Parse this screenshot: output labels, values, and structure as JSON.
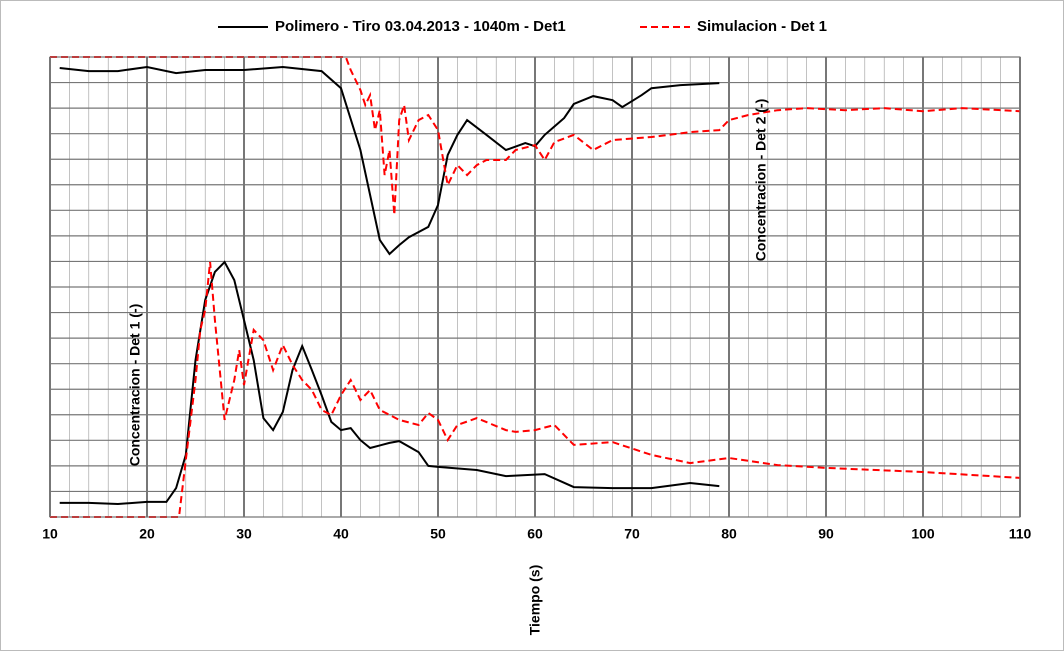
{
  "chart_data": {
    "type": "line",
    "xlabel": "Tiempo (s)",
    "annotations": [
      "Concentracion - Det 1 (-)",
      "Concentracion - Det 2 (-)"
    ],
    "xlim": [
      10,
      110
    ],
    "xticks": [
      10,
      20,
      30,
      40,
      50,
      60,
      70,
      80,
      90,
      100,
      110
    ],
    "x_minor_step": 2,
    "ylim": [
      0,
      18
    ],
    "yticks": [
      0,
      1,
      2,
      3,
      4,
      5,
      6,
      7,
      8,
      9,
      10,
      11,
      12,
      13,
      14,
      15,
      16,
      17,
      18
    ],
    "grid": true,
    "legend": "top",
    "series": [
      {
        "name": "Polimero  - Tiro 03.04.2013 - 1040m - Det1",
        "color": "#000000",
        "dash": "solid",
        "x": [
          11,
          14,
          17,
          20,
          23,
          26,
          30,
          34,
          38,
          40,
          42,
          43,
          44,
          45,
          46,
          47,
          49,
          50,
          51,
          52,
          53,
          55,
          57,
          59,
          60,
          61,
          63,
          64,
          66,
          68,
          69,
          71,
          72,
          75,
          79,
          null,
          11,
          14,
          17,
          20,
          22,
          23,
          24,
          25,
          26,
          27,
          28,
          29,
          30,
          31,
          32,
          33,
          34,
          35,
          36,
          37,
          38,
          39,
          40,
          41,
          42,
          43,
          45,
          46,
          48,
          49,
          50,
          54,
          57,
          61,
          64,
          68,
          72,
          76,
          79
        ],
        "values": [
          17.57,
          17.45,
          17.45,
          17.61,
          17.37,
          17.49,
          17.49,
          17.61,
          17.45,
          16.78,
          14.36,
          12.6,
          10.84,
          10.29,
          10.64,
          10.95,
          11.35,
          12.21,
          14.16,
          14.95,
          15.53,
          14.95,
          14.36,
          14.63,
          14.51,
          14.95,
          15.61,
          16.16,
          16.47,
          16.31,
          16.04,
          16.51,
          16.78,
          16.9,
          16.98,
          null,
          0.55,
          0.55,
          0.51,
          0.59,
          0.59,
          1.13,
          2.43,
          6.14,
          8.49,
          9.59,
          9.98,
          9.27,
          7.71,
          6.14,
          3.87,
          3.4,
          4.11,
          5.75,
          6.69,
          5.75,
          4.77,
          3.72,
          3.4,
          3.48,
          3.01,
          2.7,
          2.9,
          2.97,
          2.54,
          2.0,
          1.96,
          1.84,
          1.6,
          1.68,
          1.17,
          1.13,
          1.13,
          1.33,
          1.21
        ]
      },
      {
        "name": "Simulacion - Det 1",
        "color": "#ff0000",
        "dash": "dashed",
        "x": [
          10,
          40.5,
          41,
          42,
          42.5,
          43,
          43.5,
          44,
          44.5,
          45,
          45.5,
          46,
          46.5,
          47,
          48,
          49,
          50,
          51,
          52,
          53,
          54,
          55,
          57,
          58,
          60,
          61,
          62,
          64,
          66,
          68,
          72,
          76,
          79,
          80,
          82,
          85,
          88,
          92,
          96,
          100,
          104,
          110,
          null,
          10,
          23.3,
          24,
          25,
          25.5,
          26,
          26.5,
          27,
          28,
          29,
          29.5,
          30,
          31,
          32,
          33,
          34,
          35,
          36,
          37,
          38,
          39,
          40,
          41,
          42,
          43,
          44,
          46,
          48,
          49,
          50,
          51,
          52,
          54,
          57,
          58,
          60,
          62,
          64,
          68,
          72,
          76,
          80,
          85,
          90,
          100,
          110
        ],
        "values": [
          18.0,
          18.0,
          17.49,
          16.71,
          16.12,
          16.51,
          15.14,
          15.92,
          13.38,
          14.36,
          11.82,
          15.53,
          16.12,
          14.75,
          15.53,
          15.73,
          15.14,
          12.99,
          13.77,
          13.38,
          13.77,
          13.97,
          13.97,
          14.36,
          14.55,
          13.97,
          14.67,
          14.95,
          14.36,
          14.75,
          14.87,
          15.06,
          15.14,
          15.53,
          15.73,
          15.92,
          16.0,
          15.92,
          16.0,
          15.88,
          16.0,
          15.88,
          null,
          0,
          0,
          2.23,
          5.36,
          7.32,
          8.1,
          9.98,
          7.71,
          3.8,
          5.36,
          6.53,
          5.16,
          7.32,
          6.92,
          5.75,
          6.73,
          5.95,
          5.36,
          4.97,
          4.19,
          3.99,
          4.77,
          5.36,
          4.58,
          4.97,
          4.19,
          3.8,
          3.6,
          4.07,
          3.8,
          3.01,
          3.6,
          3.87,
          3.4,
          3.33,
          3.4,
          3.6,
          2.82,
          2.93,
          2.43,
          2.11,
          2.31,
          2.03,
          1.92,
          1.76,
          1.53
        ]
      }
    ]
  }
}
